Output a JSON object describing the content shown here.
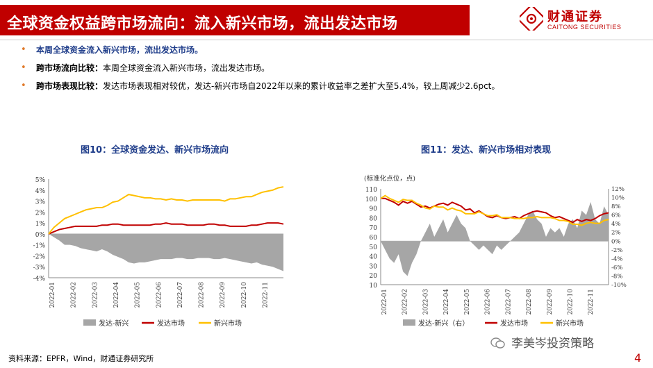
{
  "header": {
    "title": "全球资金权益跨市场流向：流入新兴市场，流出发达市场",
    "logo_cn": "财通证券",
    "logo_en": "CAITONG SECURITIES"
  },
  "bullets": [
    {
      "label": "",
      "text": "本周全球资金流入新兴市场，流出发达市场。"
    },
    {
      "label": "跨市场流向比较：",
      "text": "本周全球资金流入新兴市场，流出发达市场。"
    },
    {
      "label": "跨市场表现比较：",
      "text": "发达市场表现相对较优，发达-新兴市场自2022年以来的累计收益率之差扩大至5.4%，较上周减少2.6pct。"
    }
  ],
  "colors": {
    "gray": "#a6a6a6",
    "red": "#c00000",
    "yellow": "#ffc000",
    "blue_title": "#1f3d8a"
  },
  "chart_data": [
    {
      "type": "line",
      "title": "图10：全球资金发达、新兴市场流向",
      "x_ticks": [
        "2022-01",
        "2022-02",
        "2022-03",
        "2022-04",
        "2022-05",
        "2022-06",
        "2022-07",
        "2022-08",
        "2022-09",
        "2022-10",
        "2022-11"
      ],
      "ylim": [
        -4,
        5
      ],
      "y_ticks": [
        "5%",
        "4%",
        "3%",
        "2%",
        "1%",
        "0%",
        "-1%",
        "-2%",
        "-3%",
        "-4%"
      ],
      "series": [
        {
          "name": "发达-新兴",
          "kind": "area",
          "values": [
            0,
            -0.3,
            -0.6,
            -1.0,
            -1.0,
            -1.1,
            -1.3,
            -1.4,
            -1.5,
            -1.6,
            -1.4,
            -1.6,
            -1.9,
            -2.1,
            -2.3,
            -2.6,
            -2.7,
            -2.6,
            -2.6,
            -2.5,
            -2.4,
            -2.3,
            -2.3,
            -2.3,
            -2.2,
            -2.2,
            -2.3,
            -2.3,
            -2.2,
            -2.2,
            -2.2,
            -2.3,
            -2.3,
            -2.2,
            -2.3,
            -2.4,
            -2.5,
            -2.6,
            -2.7,
            -2.6,
            -2.8,
            -2.9,
            -3.0,
            -3.2,
            -3.4
          ]
        },
        {
          "name": "发达市场",
          "kind": "line",
          "values": [
            0,
            0.2,
            0.4,
            0.5,
            0.6,
            0.7,
            0.7,
            0.7,
            0.7,
            0.7,
            0.8,
            0.8,
            0.9,
            0.9,
            0.8,
            0.8,
            0.8,
            0.8,
            0.8,
            0.8,
            0.9,
            0.9,
            1.0,
            0.9,
            0.9,
            0.9,
            0.8,
            0.8,
            0.8,
            0.8,
            0.9,
            0.9,
            0.8,
            0.8,
            0.7,
            0.7,
            0.7,
            0.7,
            0.8,
            0.8,
            0.9,
            1.0,
            1.0,
            1.0,
            0.9
          ]
        },
        {
          "name": "新兴市场",
          "kind": "line",
          "values": [
            0,
            0.6,
            1.0,
            1.4,
            1.6,
            1.8,
            2.0,
            2.2,
            2.3,
            2.4,
            2.4,
            2.6,
            2.9,
            3.0,
            3.3,
            3.6,
            3.5,
            3.4,
            3.3,
            3.3,
            3.2,
            3.2,
            3.1,
            3.2,
            3.1,
            3.1,
            3.0,
            3.1,
            3.1,
            3.1,
            3.1,
            3.1,
            3.1,
            3.0,
            3.2,
            3.2,
            3.3,
            3.4,
            3.4,
            3.6,
            3.8,
            3.9,
            4.0,
            4.2,
            4.3
          ]
        }
      ]
    },
    {
      "type": "line",
      "title": "图11：发达、新兴市场相对表现",
      "subtitle": "(标准化点位，点)",
      "x_ticks": [
        "2022-01",
        "2022-02",
        "2022-03",
        "2022-04",
        "2022-05",
        "2022-06",
        "2022-07",
        "2022-08",
        "2022-09",
        "2022-10",
        "2022-11"
      ],
      "ylim_left": [
        10,
        110
      ],
      "y_ticks_left": [
        "110",
        "100",
        "90",
        "80",
        "70",
        "60",
        "50",
        "40",
        "30",
        "20",
        "10"
      ],
      "ylim_right": [
        -10,
        12
      ],
      "y_ticks_right": [
        "12%",
        "10%",
        "8%",
        "6%",
        "4%",
        "2%",
        "0%",
        "-2%",
        "-4%",
        "-6%",
        "-8%",
        "-10%"
      ],
      "series": [
        {
          "name": "发达-新兴（右）",
          "kind": "area",
          "axis": "right",
          "values": [
            0,
            -2,
            -4,
            -5,
            -3,
            -7,
            -8,
            -5,
            -3,
            0,
            2,
            4,
            1,
            3,
            5,
            2,
            4,
            6,
            4,
            3,
            0,
            -1,
            -2,
            -1,
            -2,
            -3,
            -1,
            -2,
            -1,
            0,
            1,
            2,
            4,
            6,
            7,
            5,
            4,
            1,
            3,
            2,
            3,
            1,
            4,
            5,
            3,
            7,
            6,
            9,
            5,
            4,
            8,
            6
          ]
        },
        {
          "name": "发达市场",
          "kind": "line",
          "axis": "left",
          "values": [
            100,
            100,
            98,
            96,
            93,
            97,
            95,
            97,
            94,
            91,
            92,
            90,
            92,
            94,
            95,
            93,
            96,
            94,
            92,
            88,
            89,
            85,
            87,
            84,
            81,
            80,
            82,
            80,
            79,
            80,
            81,
            79,
            82,
            84,
            86,
            87,
            86,
            85,
            82,
            80,
            81,
            79,
            77,
            75,
            78,
            76,
            78,
            77,
            79,
            82,
            84,
            85
          ]
        },
        {
          "name": "新兴市场",
          "kind": "line",
          "axis": "left",
          "values": [
            100,
            103,
            100,
            98,
            96,
            99,
            98,
            98,
            95,
            93,
            90,
            89,
            92,
            91,
            91,
            88,
            90,
            88,
            87,
            84,
            84,
            84,
            86,
            84,
            82,
            82,
            83,
            80,
            80,
            80,
            79,
            79,
            79,
            80,
            80,
            81,
            80,
            80,
            80,
            79,
            77,
            77,
            76,
            73,
            73,
            72,
            74,
            75,
            74,
            74,
            77,
            78
          ]
        }
      ]
    }
  ],
  "footer": {
    "source": "资料来源：EPFR，Wind，财通证券研究所",
    "page": "4",
    "watermark": "李美岑投资策略"
  }
}
